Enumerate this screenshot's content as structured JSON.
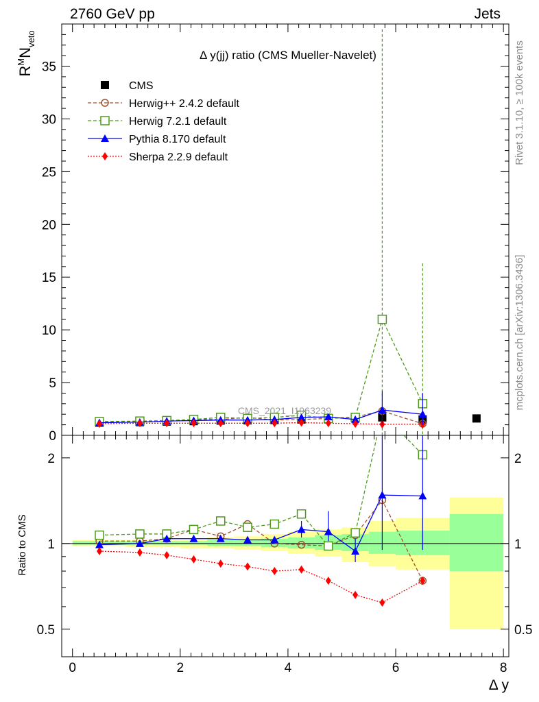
{
  "header": {
    "left": "2760 GeV pp",
    "right": "Jets"
  },
  "side_text": {
    "rivet": "Rivet 3.1.10, ≥ 100k events",
    "mcplots": "mcplots.cern.ch [arXiv:1306.3436]"
  },
  "chart_data": {
    "type": "line",
    "title": "Δ y(jj) ratio (CMS Mueller-Navelet)",
    "watermark": "CMS_2021_I1963239",
    "ylabel_main": "R^M N_veto",
    "ylabel_ratio": "Ratio to CMS",
    "xlabel": "Δ y",
    "xlim": [
      -0.2,
      8.1
    ],
    "ylim_main": [
      0,
      39
    ],
    "ylim_ratio": [
      0.4,
      2.4
    ],
    "x_ticks": [
      "0",
      "2",
      "4",
      "6",
      "8"
    ],
    "y_ticks_main": [
      "0",
      "5",
      "10",
      "15",
      "20",
      "25",
      "30",
      "35"
    ],
    "y_ticks_ratio": [
      "0.5",
      "1",
      "2"
    ],
    "legend_position": "top-left",
    "x": [
      0.5,
      1.25,
      1.75,
      2.25,
      2.75,
      3.25,
      3.75,
      4.25,
      4.75,
      5.25,
      5.75,
      6.5,
      7.5
    ],
    "bin_edges": [
      0,
      1,
      1.5,
      2,
      2.5,
      3,
      3.5,
      4,
      4.5,
      5,
      5.5,
      6,
      7,
      8
    ],
    "series": [
      {
        "name": "CMS",
        "color": "#000000",
        "marker": "square-filled",
        "line": "none",
        "x": [
          0.5,
          1.25,
          1.75,
          2.25,
          2.75,
          3.25,
          3.75,
          4.25,
          4.75,
          5.25,
          5.75,
          6.5,
          7.5
        ],
        "values": [
          1.2,
          1.25,
          1.3,
          1.35,
          1.4,
          1.42,
          1.45,
          1.5,
          1.6,
          1.65,
          1.7,
          1.5,
          1.6
        ]
      },
      {
        "name": "Herwig++ 2.4.2 default",
        "color": "#a0522d",
        "marker": "circle-open",
        "line": "dashed",
        "x": [
          0.5,
          1.25,
          1.75,
          2.25,
          2.75,
          3.25,
          3.75,
          4.25,
          4.75,
          5.25,
          5.75,
          6.5
        ],
        "values": [
          1.25,
          1.27,
          1.35,
          1.5,
          1.5,
          1.7,
          1.45,
          1.5,
          1.6,
          1.75,
          2.3,
          1.1
        ],
        "ratio": [
          1.02,
          1.02,
          1.04,
          1.12,
          1.06,
          1.17,
          1.0,
          0.99,
          0.98,
          1.07,
          1.42,
          0.74
        ]
      },
      {
        "name": "Herwig 7.2.1 default",
        "color": "#4d9a1a",
        "marker": "square-open",
        "line": "dashed",
        "x": [
          0.5,
          1.25,
          1.75,
          2.25,
          2.75,
          3.25,
          3.75,
          4.25,
          4.75,
          5.25,
          5.75,
          6.5
        ],
        "values": [
          1.3,
          1.35,
          1.4,
          1.5,
          1.7,
          1.6,
          1.7,
          1.9,
          1.6,
          1.7,
          11.0,
          3.0
        ],
        "ratio": [
          1.07,
          1.08,
          1.08,
          1.12,
          1.2,
          1.14,
          1.17,
          1.27,
          0.98,
          1.09,
          6.5,
          2.05
        ],
        "err_main": [
          0.1,
          0.1,
          0.1,
          0.1,
          0.1,
          0.1,
          0.15,
          0.2,
          0.2,
          0.3,
          27.5,
          13.3
        ]
      },
      {
        "name": "Pythia 8.170 default",
        "color": "#0000ff",
        "marker": "triangle-filled",
        "line": "solid",
        "x": [
          0.5,
          1.25,
          1.75,
          2.25,
          2.75,
          3.25,
          3.75,
          4.25,
          4.75,
          5.25,
          5.75,
          6.5
        ],
        "values": [
          1.2,
          1.25,
          1.35,
          1.4,
          1.45,
          1.45,
          1.5,
          1.7,
          1.75,
          1.5,
          2.4,
          2.0
        ],
        "ratio": [
          0.99,
          1.0,
          1.04,
          1.04,
          1.04,
          1.03,
          1.03,
          1.12,
          1.1,
          0.94,
          1.48,
          1.47
        ]
      },
      {
        "name": "Sherpa 2.2.9 default",
        "color": "#ff0000",
        "marker": "diamond-filled",
        "line": "dotted",
        "x": [
          0.5,
          1.25,
          1.75,
          2.25,
          2.75,
          3.25,
          3.75,
          4.25,
          4.75,
          5.25,
          5.75,
          6.5
        ],
        "values": [
          1.1,
          1.15,
          1.15,
          1.15,
          1.15,
          1.15,
          1.15,
          1.2,
          1.15,
          1.1,
          1.05,
          1.05
        ],
        "ratio": [
          0.94,
          0.93,
          0.91,
          0.88,
          0.85,
          0.83,
          0.8,
          0.81,
          0.74,
          0.66,
          0.62,
          0.74
        ]
      }
    ],
    "bands": {
      "yellow_lo": [
        0.98,
        0.97,
        0.97,
        0.96,
        0.96,
        0.95,
        0.94,
        0.92,
        0.9,
        0.86,
        0.83,
        0.81,
        0.5
      ],
      "yellow_hi": [
        1.03,
        1.03,
        1.03,
        1.03,
        1.05,
        1.06,
        1.08,
        1.1,
        1.12,
        1.14,
        1.2,
        1.23,
        1.45
      ],
      "green_lo": [
        0.99,
        0.99,
        0.99,
        0.99,
        0.98,
        0.98,
        0.97,
        0.96,
        0.95,
        0.94,
        0.92,
        0.91,
        0.8
      ],
      "green_hi": [
        1.02,
        1.02,
        1.02,
        1.02,
        1.03,
        1.03,
        1.04,
        1.05,
        1.07,
        1.08,
        1.1,
        1.11,
        1.27
      ]
    }
  }
}
